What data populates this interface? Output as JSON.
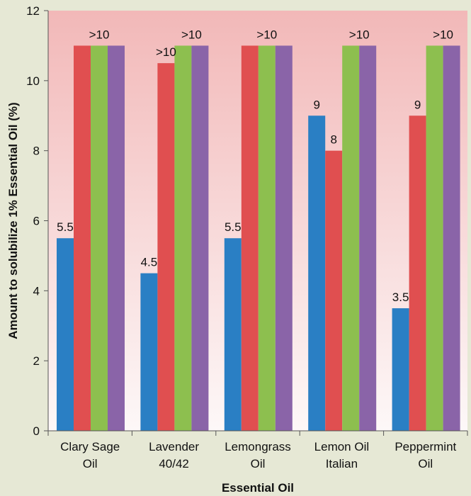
{
  "colors": {
    "page_background": "#e6e8d5",
    "plot_gradient_top": "#f2b8b8",
    "plot_gradient_bottom": "#fdf8f8",
    "series": [
      "#2a7fc4",
      "#e04f50",
      "#8dbf4f",
      "#8a64a8"
    ]
  },
  "chart_data": {
    "type": "bar",
    "title": "",
    "xlabel": "Essential Oil",
    "ylabel": "Amount to solubilize 1% Essential Oil (%)",
    "ylim": [
      0,
      12
    ],
    "yticks": [
      0,
      2,
      4,
      6,
      8,
      10,
      12
    ],
    "grid": false,
    "legend": "none",
    "categories": [
      [
        "Clary Sage",
        "Oil"
      ],
      [
        "Lavender",
        "40/42"
      ],
      [
        "Lemongrass",
        "Oil"
      ],
      [
        "Lemon Oil",
        "Italian"
      ],
      [
        "Peppermint",
        "Oil"
      ]
    ],
    "series": [
      {
        "values": [
          5.5,
          4.5,
          5.5,
          9,
          3.5
        ]
      },
      {
        "values": [
          11,
          10.5,
          11,
          8,
          9
        ]
      },
      {
        "values": [
          11,
          11,
          11,
          11,
          11
        ]
      },
      {
        "values": [
          11,
          11,
          11,
          11,
          11
        ]
      }
    ],
    "data_labels": [
      {
        "category": 0,
        "series": 0,
        "text": "5.5"
      },
      {
        "category": 0,
        "series": "1-3",
        "text": ">10"
      },
      {
        "category": 1,
        "series": 0,
        "text": "4.5"
      },
      {
        "category": 1,
        "series": 1,
        "text": ">10"
      },
      {
        "category": 1,
        "series": "2-3",
        "text": ">10"
      },
      {
        "category": 2,
        "series": 0,
        "text": "5.5"
      },
      {
        "category": 2,
        "series": "1-3",
        "text": ">10"
      },
      {
        "category": 3,
        "series": 0,
        "text": "9"
      },
      {
        "category": 3,
        "series": 1,
        "text": "8"
      },
      {
        "category": 3,
        "series": "2-3",
        "text": ">10"
      },
      {
        "category": 4,
        "series": 0,
        "text": "3.5"
      },
      {
        "category": 4,
        "series": 1,
        "text": "9"
      },
      {
        "category": 4,
        "series": "2-3",
        "text": ">10"
      }
    ]
  }
}
